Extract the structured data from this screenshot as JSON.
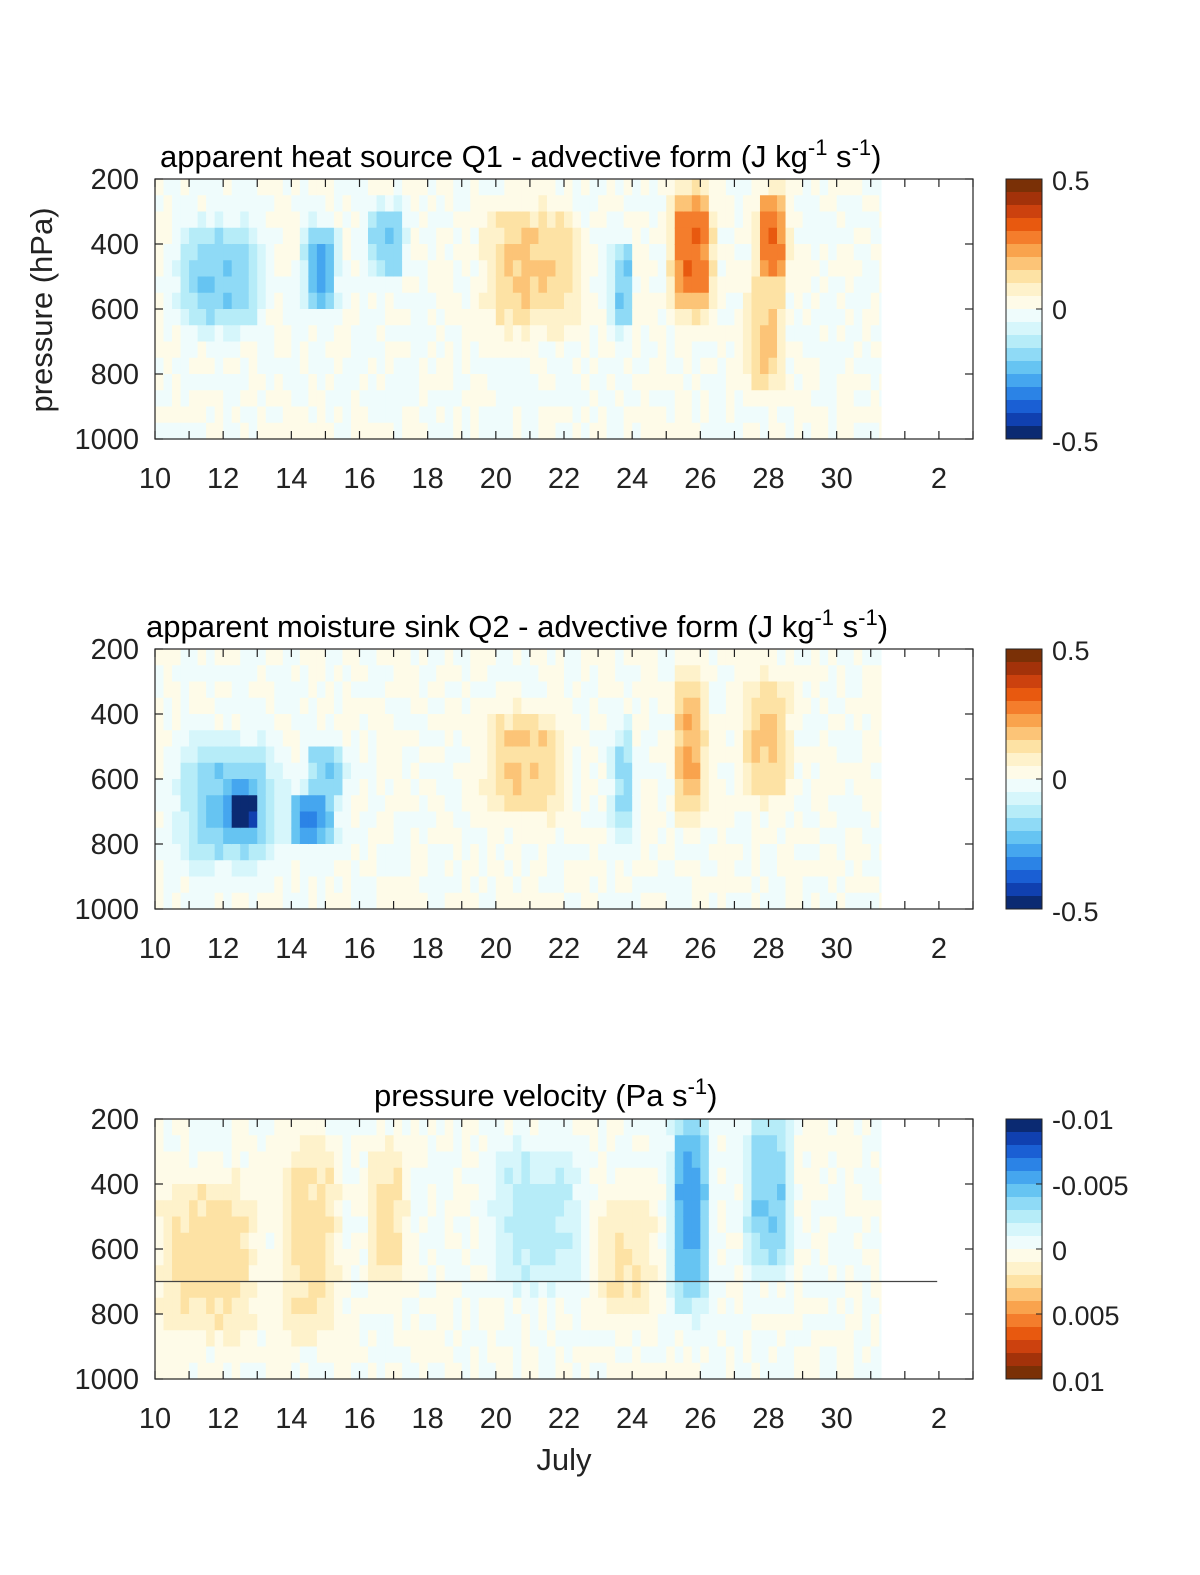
{
  "panels": [
    {
      "title_main": "apparent heat source Q1 - advective form (J kg",
      "title_exp1": "-1",
      "title_mid": " s",
      "title_exp2": "-1",
      "title_end": ")",
      "colorbar_labels": [
        "0.5",
        "0",
        "-0.5"
      ],
      "colormap": "diverging-warm-top"
    },
    {
      "title_main": "apparent moisture sink Q2 - advective form (J kg",
      "title_exp1": "-1",
      "title_mid": " s",
      "title_exp2": "-1",
      "title_end": ")",
      "colorbar_labels": [
        "0.5",
        "0",
        "-0.5"
      ],
      "colormap": "diverging-warm-top"
    },
    {
      "title_main": "pressure velocity (Pa s",
      "title_exp1": "-1",
      "title_mid": "",
      "title_exp2": "",
      "title_end": ")",
      "colorbar_labels": [
        "-0.01",
        "-0.005",
        "0",
        "0.005",
        "0.01"
      ],
      "colormap": "diverging-cool-top"
    }
  ],
  "ylabel": "pressure (hPa)",
  "xlabel": "July",
  "chart_data": [
    {
      "type": "heatmap",
      "title": "apparent heat source Q1 - advective form (J kg-1 s-1)",
      "ylabel": "pressure (hPa)",
      "ylim": [
        1000,
        200
      ],
      "yticks": [
        200,
        400,
        600,
        800,
        1000
      ],
      "xticks": [
        "10",
        "12",
        "14",
        "16",
        "18",
        "20",
        "22",
        "24",
        "26",
        "28",
        "30",
        "2"
      ],
      "data_end": "31",
      "clim": [
        -0.5,
        0.5
      ],
      "levels": 20,
      "features": [
        {
          "x": [
            10.8,
            13.0
          ],
          "p": [
            350,
            650
          ],
          "value": -0.2
        },
        {
          "x": [
            14.4,
            15.3
          ],
          "p": [
            350,
            600
          ],
          "value": -0.25
        },
        {
          "x": [
            16.3,
            17.3
          ],
          "p": [
            300,
            500
          ],
          "value": -0.2
        },
        {
          "x": [
            19.8,
            22.3
          ],
          "p": [
            300,
            650
          ],
          "value": 0.15
        },
        {
          "x": [
            23.4,
            24.0
          ],
          "p": [
            400,
            650
          ],
          "value": -0.2
        },
        {
          "x": [
            25.2,
            26.3
          ],
          "p": [
            250,
            600
          ],
          "value": 0.3
        },
        {
          "x": [
            27.7,
            28.5
          ],
          "p": [
            250,
            500
          ],
          "value": 0.3
        },
        {
          "x": [
            27.4,
            28.4
          ],
          "p": [
            500,
            850
          ],
          "value": 0.15
        }
      ]
    },
    {
      "type": "heatmap",
      "title": "apparent moisture sink Q2 - advective form (J kg-1 s-1)",
      "ylabel": "pressure (hPa)",
      "ylim": [
        1000,
        200
      ],
      "yticks": [
        200,
        400,
        600,
        800,
        1000
      ],
      "xticks": [
        "10",
        "12",
        "14",
        "16",
        "18",
        "20",
        "22",
        "24",
        "26",
        "28",
        "30",
        "2"
      ],
      "data_end": "31",
      "clim": [
        -0.5,
        0.5
      ],
      "levels": 20,
      "features": [
        {
          "x": [
            10.8,
            13.5
          ],
          "p": [
            500,
            850
          ],
          "value": -0.2
        },
        {
          "x": [
            12.2,
            13.0
          ],
          "p": [
            650,
            750
          ],
          "value": -0.3
        },
        {
          "x": [
            14.0,
            15.2
          ],
          "p": [
            650,
            800
          ],
          "value": -0.3
        },
        {
          "x": [
            14.5,
            15.5
          ],
          "p": [
            500,
            650
          ],
          "value": -0.2
        },
        {
          "x": [
            19.8,
            21.9
          ],
          "p": [
            400,
            700
          ],
          "value": 0.15
        },
        {
          "x": [
            23.4,
            24.0
          ],
          "p": [
            450,
            800
          ],
          "value": -0.15
        },
        {
          "x": [
            25.3,
            26.1
          ],
          "p": [
            300,
            700
          ],
          "value": 0.2
        },
        {
          "x": [
            27.3,
            28.6
          ],
          "p": [
            300,
            650
          ],
          "value": 0.15
        }
      ]
    },
    {
      "type": "heatmap",
      "title": "pressure velocity (Pa s-1)",
      "ylabel": "pressure (hPa)",
      "xlabel": "July",
      "ylim": [
        1000,
        200
      ],
      "yticks": [
        200,
        400,
        600,
        800,
        1000
      ],
      "xticks": [
        "10",
        "12",
        "14",
        "16",
        "18",
        "20",
        "22",
        "24",
        "26",
        "28",
        "30",
        "2"
      ],
      "data_end": "31",
      "clim": [
        -0.01,
        0.01
      ],
      "levels": 20,
      "reference_line_hpa": 700,
      "features": [
        {
          "x": [
            10.3,
            12.9
          ],
          "p": [
            400,
            850
          ],
          "value": 0.0025
        },
        {
          "x": [
            13.8,
            15.3
          ],
          "p": [
            300,
            850
          ],
          "value": 0.0025
        },
        {
          "x": [
            16.3,
            17.3
          ],
          "p": [
            300,
            700
          ],
          "value": 0.0025
        },
        {
          "x": [
            20.0,
            22.4
          ],
          "p": [
            300,
            700
          ],
          "value": -0.0025
        },
        {
          "x": [
            23.0,
            24.6
          ],
          "p": [
            450,
            800
          ],
          "value": 0.002
        },
        {
          "x": [
            25.2,
            26.2
          ],
          "p": [
            200,
            750
          ],
          "value": -0.0055
        },
        {
          "x": [
            27.4,
            28.6
          ],
          "p": [
            200,
            650
          ],
          "value": -0.004
        }
      ]
    }
  ]
}
